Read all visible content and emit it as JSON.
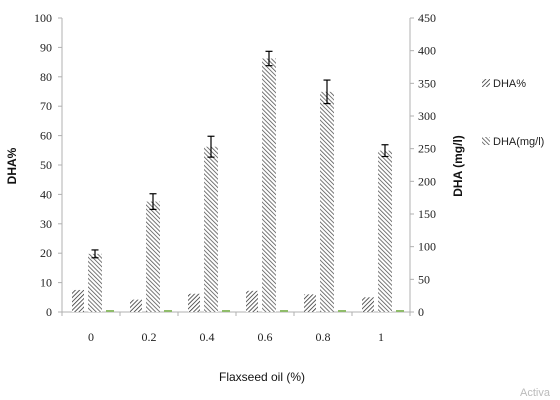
{
  "chart_data": {
    "type": "bar",
    "xlabel": "Flaxseed oil (%)",
    "ylabel_left": "DHA%",
    "ylabel_right": "DHA (mg/l)",
    "categories": [
      "0",
      "0.2",
      "0.4",
      "0.6",
      "0.8",
      "1"
    ],
    "ylim_left": [
      0,
      100
    ],
    "ylim_right": [
      0,
      450
    ],
    "yticks_left": [
      "0",
      "10",
      "20",
      "30",
      "40",
      "50",
      "60",
      "70",
      "80",
      "90",
      "100"
    ],
    "yticks_right": [
      "0",
      "50",
      "100",
      "150",
      "200",
      "250",
      "300",
      "350",
      "400",
      "450"
    ],
    "series": [
      {
        "name": "DHA%",
        "axis": "left",
        "values": [
          7.5,
          4.2,
          6.2,
          7.2,
          6.0,
          5.0
        ]
      },
      {
        "name": "DHA(mg/l)",
        "axis": "right",
        "values": [
          89,
          169,
          253,
          388,
          337,
          247
        ],
        "errors": [
          6,
          12,
          16,
          11,
          18,
          9
        ]
      }
    ],
    "legend_position": "right",
    "grid": false
  },
  "watermark_text": "Activa"
}
